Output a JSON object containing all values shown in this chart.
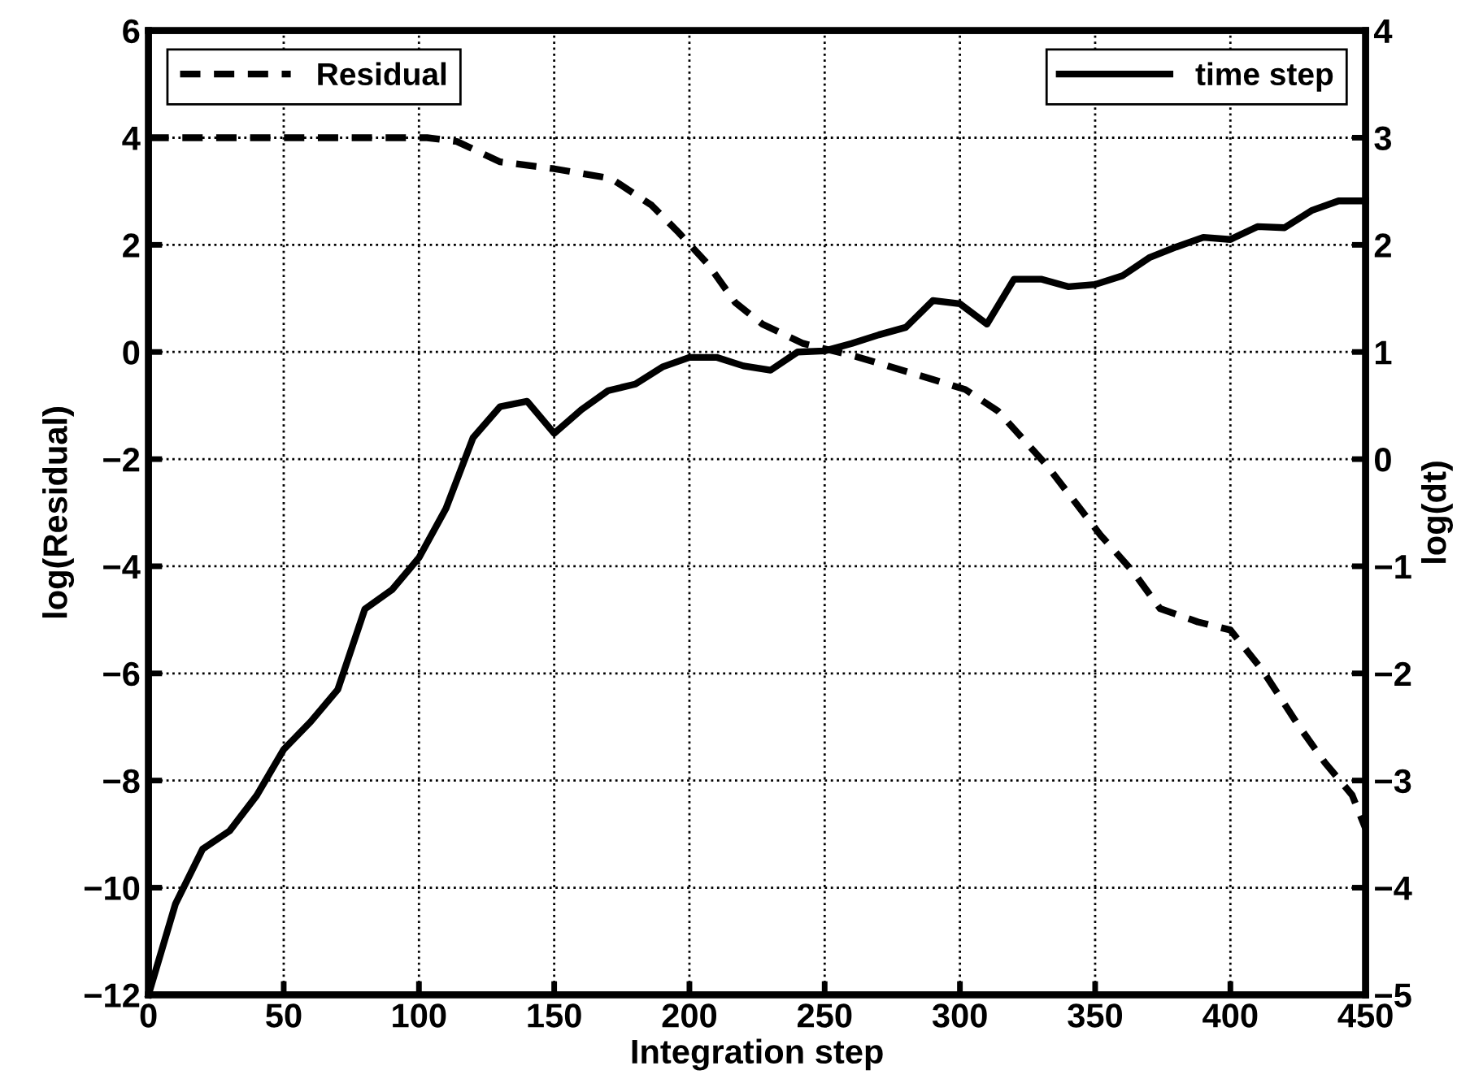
{
  "chart_data": {
    "type": "line",
    "xlabel": "Integration step",
    "ylabel": "log(Residual)",
    "y2label": "log(dt)",
    "xlim": [
      0,
      450
    ],
    "xticks": [
      0,
      50,
      100,
      150,
      200,
      250,
      300,
      350,
      400,
      450
    ],
    "ylim": [
      -12,
      6
    ],
    "yticks": [
      -12,
      -10,
      -8,
      -6,
      -4,
      -2,
      0,
      2,
      4,
      6
    ],
    "y2lim": [
      -5,
      4
    ],
    "y2ticks": [
      -5,
      -4,
      -3,
      -2,
      -1,
      0,
      1,
      2,
      3,
      4
    ],
    "grid": true,
    "marker": "none",
    "legend": "top",
    "series": [
      {
        "name": "Residual",
        "color": "#000000",
        "line_style": "dashed",
        "x": [
          0,
          103,
          114,
          130,
          150,
          171,
          186,
          196,
          207,
          217,
          227,
          242,
          262,
          282,
          302,
          314,
          332,
          352,
          364,
          374,
          388,
          400,
          412,
          425,
          435,
          445,
          450
        ],
        "values": [
          4,
          4,
          3.93,
          3.55,
          3.42,
          3.24,
          2.74,
          2.23,
          1.63,
          0.92,
          0.52,
          0.16,
          -0.09,
          -0.39,
          -0.7,
          -1.1,
          -2.11,
          -3.42,
          -4.1,
          -4.79,
          -5.04,
          -5.19,
          -5.95,
          -6.96,
          -7.67,
          -8.27,
          -8.9
        ]
      },
      {
        "name": "time step",
        "color": "#000000",
        "line_style": "solid",
        "axis": "y2",
        "x": [
          0,
          10,
          20,
          30,
          40,
          50,
          60,
          70,
          80,
          90,
          100,
          110,
          120,
          130,
          140,
          150,
          160,
          170,
          180,
          190,
          200,
          210,
          220,
          230,
          240,
          250,
          260,
          270,
          280,
          290,
          300,
          310,
          320,
          330,
          340,
          350,
          360,
          370,
          380,
          390,
          400,
          410,
          420,
          430,
          440,
          450
        ],
        "values": [
          -5,
          -4.15,
          -3.64,
          -3.47,
          -3.14,
          -2.71,
          -2.45,
          -2.15,
          -1.4,
          -1.22,
          -0.92,
          -0.46,
          0.2,
          0.49,
          0.54,
          0.24,
          0.46,
          0.64,
          0.7,
          0.86,
          0.95,
          0.95,
          0.87,
          0.83,
          1.0,
          1.01,
          1.08,
          1.16,
          1.23,
          1.48,
          1.45,
          1.26,
          1.68,
          1.68,
          1.61,
          1.63,
          1.71,
          1.88,
          1.98,
          2.07,
          2.05,
          2.17,
          2.16,
          2.32,
          2.41,
          2.41
        ]
      }
    ]
  }
}
